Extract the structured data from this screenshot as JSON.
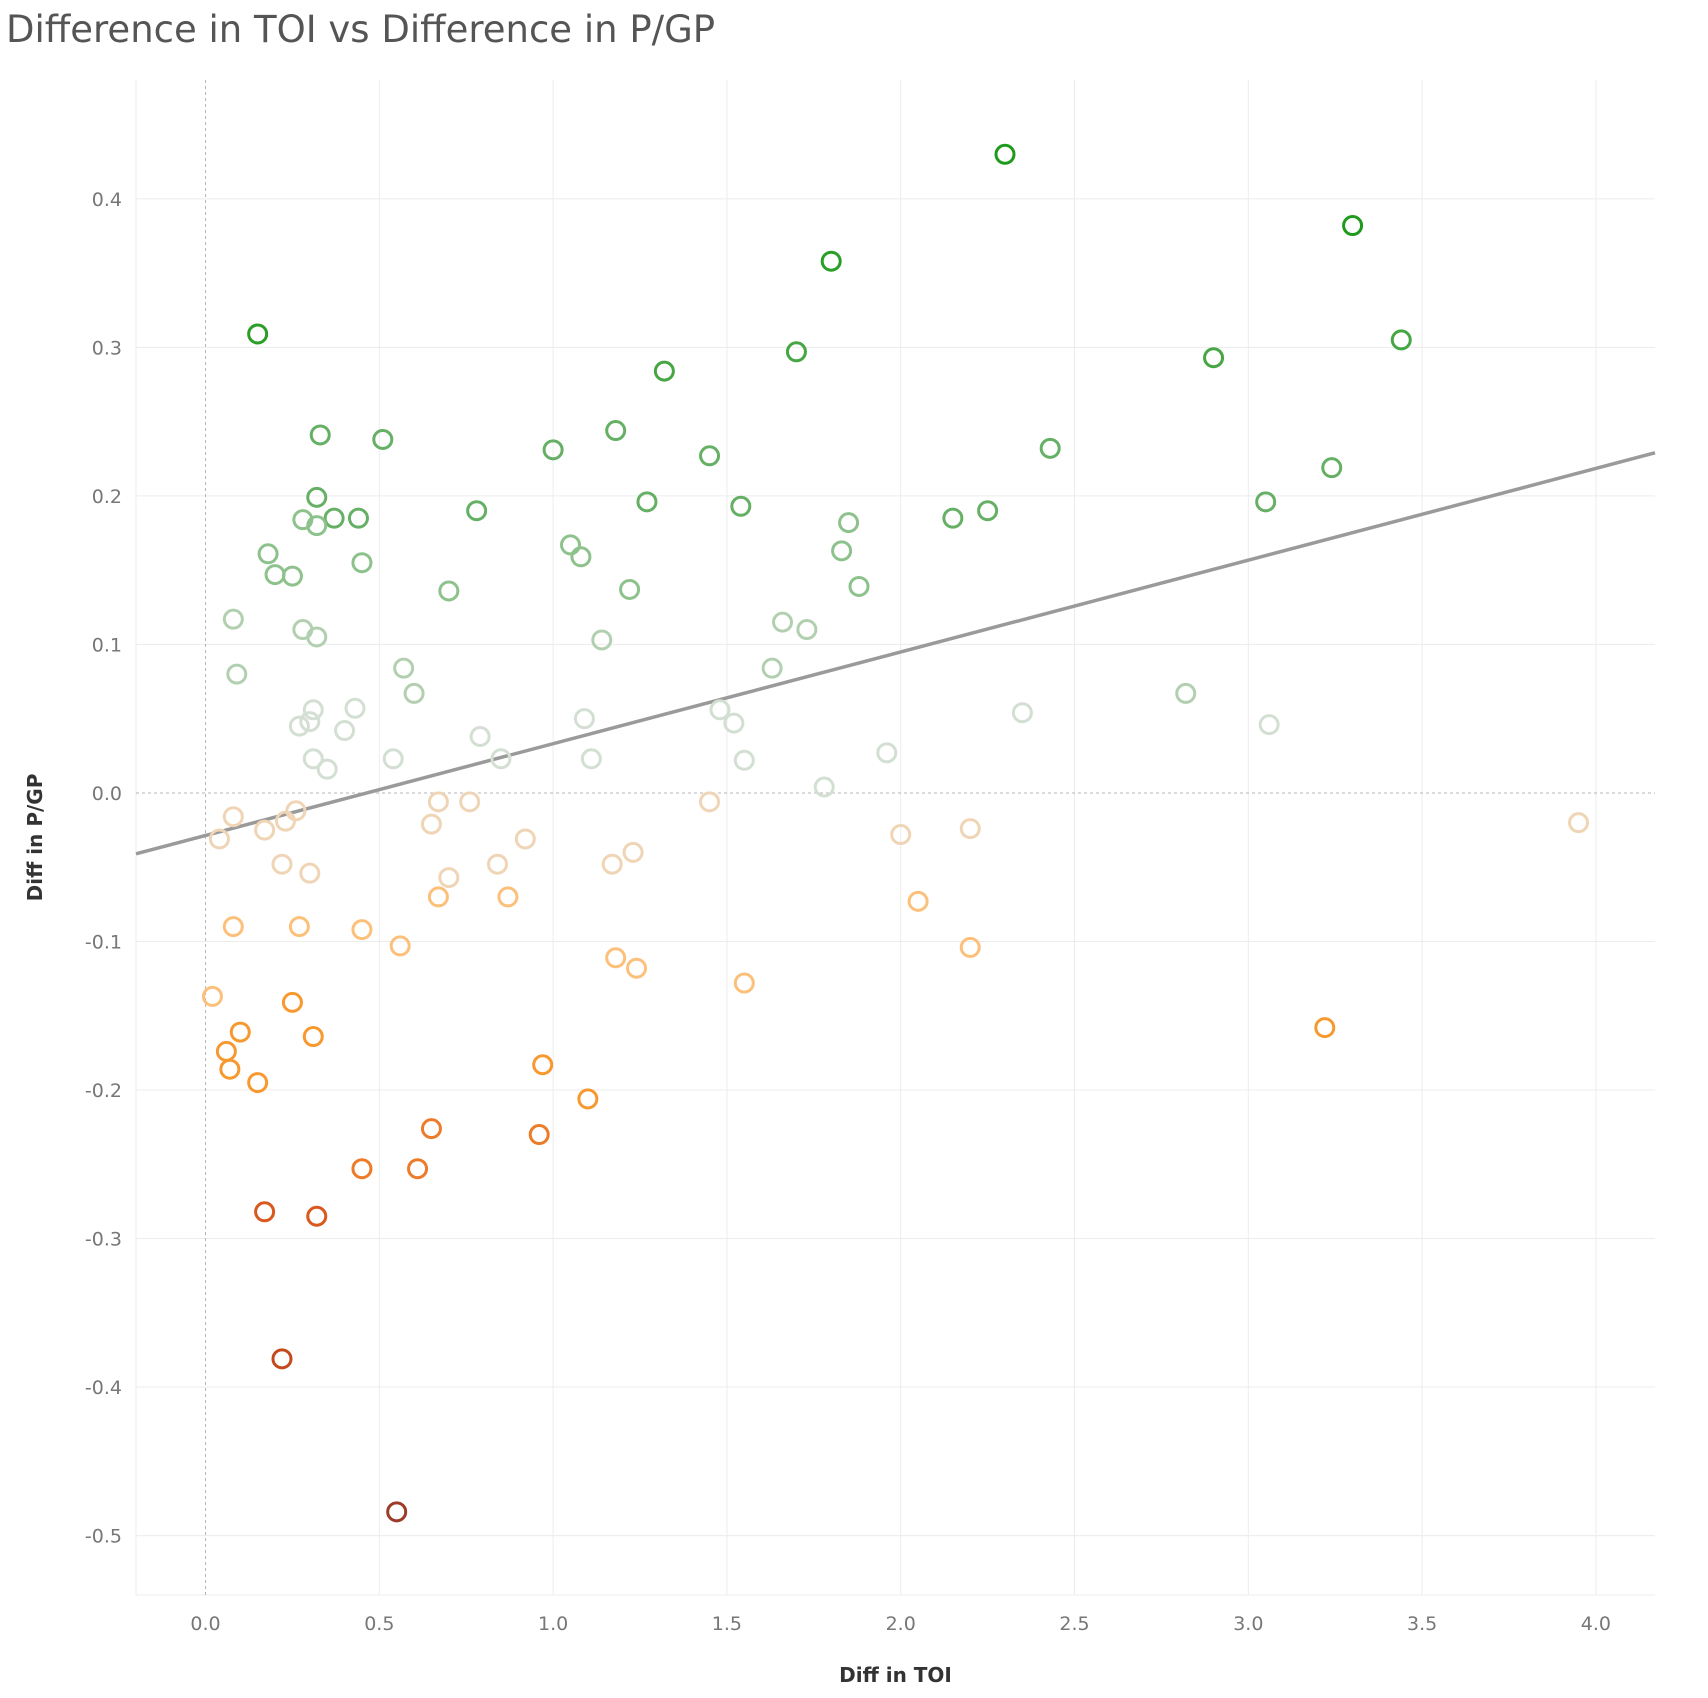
{
  "chart_data": {
    "type": "scatter",
    "title": "Difference in TOI vs Difference in P/GP",
    "xlabel": "Diff in TOI",
    "ylabel": "Diff in P/GP",
    "xlim": [
      -0.2,
      4.17
    ],
    "ylim": [
      -0.54,
      0.48
    ],
    "x_ticks": [
      "0.0",
      "0.5",
      "1.0",
      "1.5",
      "2.0",
      "2.5",
      "3.0",
      "3.5",
      "4.0"
    ],
    "y_ticks": [
      "0.4",
      "0.3",
      "0.2",
      "0.1",
      "0.0",
      "-0.1",
      "-0.2",
      "-0.3",
      "-0.4",
      "-0.5"
    ],
    "grid": true,
    "legend": "none",
    "reference_lines": {
      "x": 0,
      "y": 0
    },
    "trend_line": {
      "from": [
        -0.2,
        -0.041
      ],
      "to": [
        4.17,
        0.229
      ],
      "color": "#9a9a9a"
    },
    "color_scale": {
      "field": "Diff in P/GP",
      "negative": [
        "#efd5b5",
        "#fcc07a",
        "#f7992f",
        "#ec7b2a",
        "#d9581d",
        "#c44a1e",
        "#9c3b28"
      ],
      "positive": [
        "#d3dfd2",
        "#b2d0b0",
        "#8dc28c",
        "#65b064",
        "#45a643",
        "#2a9e27",
        "#1e9a1c"
      ]
    },
    "points": [
      {
        "x": 2.3,
        "y": 0.43
      },
      {
        "x": 3.3,
        "y": 0.382
      },
      {
        "x": 1.8,
        "y": 0.358
      },
      {
        "x": 0.15,
        "y": 0.309
      },
      {
        "x": 3.44,
        "y": 0.305
      },
      {
        "x": 1.7,
        "y": 0.297
      },
      {
        "x": 2.9,
        "y": 0.293
      },
      {
        "x": 1.32,
        "y": 0.284
      },
      {
        "x": 1.18,
        "y": 0.244
      },
      {
        "x": 0.33,
        "y": 0.241
      },
      {
        "x": 0.51,
        "y": 0.238
      },
      {
        "x": 2.43,
        "y": 0.232
      },
      {
        "x": 1.0,
        "y": 0.231
      },
      {
        "x": 1.45,
        "y": 0.227
      },
      {
        "x": 3.24,
        "y": 0.219
      },
      {
        "x": 0.32,
        "y": 0.199
      },
      {
        "x": 1.27,
        "y": 0.196
      },
      {
        "x": 3.05,
        "y": 0.196
      },
      {
        "x": 1.54,
        "y": 0.193
      },
      {
        "x": 2.25,
        "y": 0.19
      },
      {
        "x": 0.78,
        "y": 0.19
      },
      {
        "x": 0.28,
        "y": 0.184
      },
      {
        "x": 0.37,
        "y": 0.185
      },
      {
        "x": 0.44,
        "y": 0.185
      },
      {
        "x": 2.15,
        "y": 0.185
      },
      {
        "x": 0.32,
        "y": 0.18
      },
      {
        "x": 1.85,
        "y": 0.182
      },
      {
        "x": 1.05,
        "y": 0.167
      },
      {
        "x": 1.83,
        "y": 0.163
      },
      {
        "x": 0.18,
        "y": 0.161
      },
      {
        "x": 1.08,
        "y": 0.159
      },
      {
        "x": 0.45,
        "y": 0.155
      },
      {
        "x": 0.2,
        "y": 0.147
      },
      {
        "x": 0.25,
        "y": 0.146
      },
      {
        "x": 1.88,
        "y": 0.139
      },
      {
        "x": 1.22,
        "y": 0.137
      },
      {
        "x": 0.7,
        "y": 0.136
      },
      {
        "x": 0.08,
        "y": 0.117
      },
      {
        "x": 1.66,
        "y": 0.115
      },
      {
        "x": 1.73,
        "y": 0.11
      },
      {
        "x": 0.28,
        "y": 0.11
      },
      {
        "x": 0.32,
        "y": 0.105
      },
      {
        "x": 1.14,
        "y": 0.103
      },
      {
        "x": 1.63,
        "y": 0.084
      },
      {
        "x": 0.57,
        "y": 0.084
      },
      {
        "x": 0.09,
        "y": 0.08
      },
      {
        "x": 0.6,
        "y": 0.067
      },
      {
        "x": 2.82,
        "y": 0.067
      },
      {
        "x": 0.43,
        "y": 0.057
      },
      {
        "x": 0.31,
        "y": 0.056
      },
      {
        "x": 1.48,
        "y": 0.056
      },
      {
        "x": 2.35,
        "y": 0.054
      },
      {
        "x": 1.09,
        "y": 0.05
      },
      {
        "x": 0.3,
        "y": 0.048
      },
      {
        "x": 1.52,
        "y": 0.047
      },
      {
        "x": 0.27,
        "y": 0.045
      },
      {
        "x": 3.06,
        "y": 0.046
      },
      {
        "x": 0.4,
        "y": 0.042
      },
      {
        "x": 0.79,
        "y": 0.038
      },
      {
        "x": 1.96,
        "y": 0.027
      },
      {
        "x": 0.31,
        "y": 0.023
      },
      {
        "x": 0.54,
        "y": 0.023
      },
      {
        "x": 0.85,
        "y": 0.023
      },
      {
        "x": 1.11,
        "y": 0.023
      },
      {
        "x": 1.55,
        "y": 0.022
      },
      {
        "x": 0.35,
        "y": 0.016
      },
      {
        "x": 1.78,
        "y": 0.004
      },
      {
        "x": 0.67,
        "y": -0.006
      },
      {
        "x": 0.76,
        "y": -0.006
      },
      {
        "x": 1.45,
        "y": -0.006
      },
      {
        "x": 0.26,
        "y": -0.012
      },
      {
        "x": 0.08,
        "y": -0.016
      },
      {
        "x": 0.23,
        "y": -0.019
      },
      {
        "x": 3.95,
        "y": -0.02
      },
      {
        "x": 0.65,
        "y": -0.021
      },
      {
        "x": 2.2,
        "y": -0.024
      },
      {
        "x": 0.17,
        "y": -0.025
      },
      {
        "x": 2.0,
        "y": -0.028
      },
      {
        "x": 0.04,
        "y": -0.031
      },
      {
        "x": 0.92,
        "y": -0.031
      },
      {
        "x": 1.23,
        "y": -0.04
      },
      {
        "x": 0.22,
        "y": -0.048
      },
      {
        "x": 0.84,
        "y": -0.048
      },
      {
        "x": 1.17,
        "y": -0.048
      },
      {
        "x": 0.3,
        "y": -0.054
      },
      {
        "x": 0.7,
        "y": -0.057
      },
      {
        "x": 0.67,
        "y": -0.07
      },
      {
        "x": 0.87,
        "y": -0.07
      },
      {
        "x": 2.05,
        "y": -0.073
      },
      {
        "x": 0.08,
        "y": -0.09
      },
      {
        "x": 0.27,
        "y": -0.09
      },
      {
        "x": 0.45,
        "y": -0.092
      },
      {
        "x": 0.56,
        "y": -0.103
      },
      {
        "x": 2.2,
        "y": -0.104
      },
      {
        "x": 1.18,
        "y": -0.111
      },
      {
        "x": 1.24,
        "y": -0.118
      },
      {
        "x": 1.55,
        "y": -0.128
      },
      {
        "x": 0.02,
        "y": -0.137
      },
      {
        "x": 0.25,
        "y": -0.141
      },
      {
        "x": 3.22,
        "y": -0.158
      },
      {
        "x": 0.1,
        "y": -0.161
      },
      {
        "x": 0.31,
        "y": -0.164
      },
      {
        "x": 0.06,
        "y": -0.174
      },
      {
        "x": 0.97,
        "y": -0.183
      },
      {
        "x": 0.07,
        "y": -0.186
      },
      {
        "x": 0.15,
        "y": -0.195
      },
      {
        "x": 1.1,
        "y": -0.206
      },
      {
        "x": 0.65,
        "y": -0.226
      },
      {
        "x": 0.96,
        "y": -0.23
      },
      {
        "x": 0.45,
        "y": -0.253
      },
      {
        "x": 0.61,
        "y": -0.253
      },
      {
        "x": 0.17,
        "y": -0.282
      },
      {
        "x": 0.32,
        "y": -0.285
      },
      {
        "x": 0.22,
        "y": -0.381
      },
      {
        "x": 0.55,
        "y": -0.484
      }
    ]
  }
}
